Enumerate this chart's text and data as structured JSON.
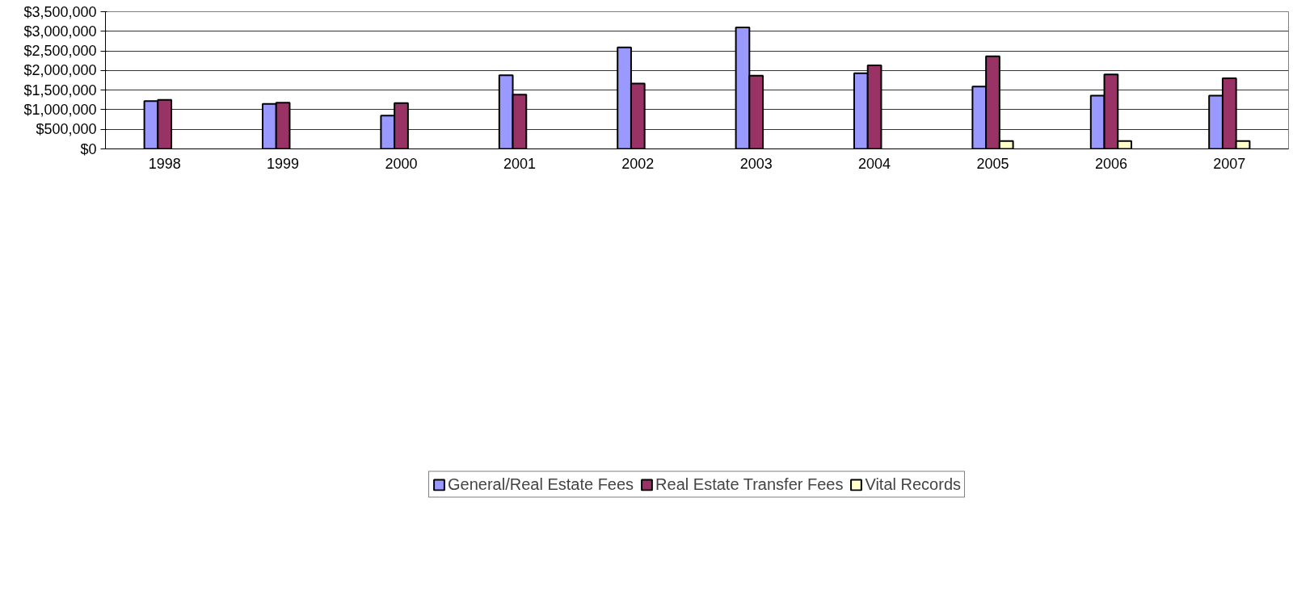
{
  "chart_data": {
    "type": "bar",
    "categories": [
      "1998",
      "1999",
      "2000",
      "2001",
      "2002",
      "2003",
      "2004",
      "2005",
      "2006",
      "2007"
    ],
    "series": [
      {
        "name": "General/Real Estate Fees",
        "color": "#9999ff",
        "values": [
          1220000,
          1150000,
          850000,
          1880000,
          2590000,
          3100000,
          1930000,
          1590000,
          1360000,
          1360000
        ]
      },
      {
        "name": "Real Estate Transfer Fees",
        "color": "#993366",
        "values": [
          1250000,
          1180000,
          1170000,
          1385000,
          1670000,
          1870000,
          2130000,
          2360000,
          1900000,
          1800000
        ]
      },
      {
        "name": "Vital Records",
        "color": "#ffffcc",
        "values": [
          null,
          null,
          null,
          null,
          null,
          null,
          null,
          200000,
          200000,
          200000
        ]
      }
    ],
    "ylim": [
      0,
      3500000
    ],
    "yticks": [
      {
        "value": 0,
        "label": "$0"
      },
      {
        "value": 500000,
        "label": "$500,000"
      },
      {
        "value": 1000000,
        "label": "$1,000,000"
      },
      {
        "value": 1500000,
        "label": "$1,500,000"
      },
      {
        "value": 2000000,
        "label": "$2,000,000"
      },
      {
        "value": 2500000,
        "label": "$2,500,000"
      },
      {
        "value": 3000000,
        "label": "$3,000,000"
      },
      {
        "value": 3500000,
        "label": "$3,500,000"
      }
    ],
    "grid": "y",
    "legend": "bottom"
  }
}
